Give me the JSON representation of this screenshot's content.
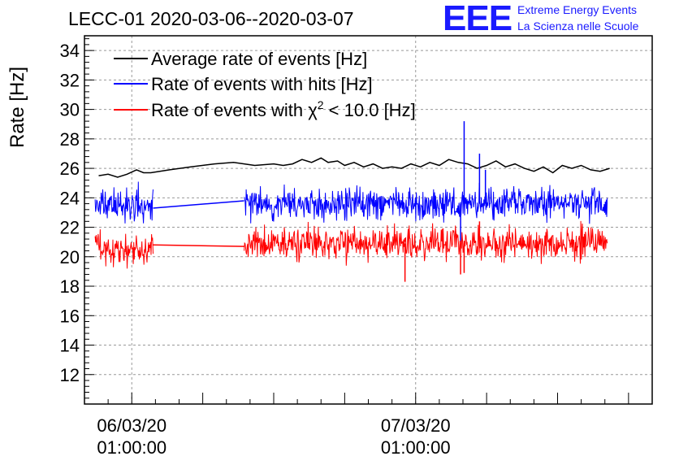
{
  "header": {
    "title": "LECC-01 2020-03-06--2020-03-07",
    "logo_text": "EEE",
    "logo_line1": "Extreme Energy Events",
    "logo_line2": "La Scienza nelle Scuole"
  },
  "chart_data": {
    "type": "line",
    "ylabel": "Rate [Hz]",
    "ylim": [
      10,
      35
    ],
    "yticks": [
      12,
      14,
      16,
      18,
      20,
      22,
      24,
      26,
      28,
      30,
      32,
      34
    ],
    "xlim_hours": [
      -2.0,
      22.0
    ],
    "xticks": [
      {
        "t": 0,
        "line1": "06/03/20",
        "line2": "01:00:00"
      },
      {
        "t": 12,
        "line1": "07/03/20",
        "line2": "01:00:00"
      }
    ],
    "grid": true,
    "legend": "top-left",
    "legend_entries": [
      {
        "series": "avg",
        "text_before": "Average rate of events [Hz]",
        "sup": "",
        "text_after": ""
      },
      {
        "series": "hits",
        "text_before": "Rate of events with hits [Hz]",
        "sup": "",
        "text_after": ""
      },
      {
        "series": "chi2",
        "text_before": "Rate of events with χ",
        "sup": "2",
        "text_after": " < 10.0 [Hz]"
      }
    ],
    "series": [
      {
        "key": "avg",
        "name": "Average rate of events [Hz]",
        "color": "#000000",
        "x": [
          -1.4,
          -1.0,
          -0.6,
          -0.2,
          0.2,
          0.5,
          0.8,
          1.6,
          2.5,
          3.5,
          4.3,
          5.2,
          6.0,
          6.4,
          6.8,
          7.2,
          7.6,
          8.0,
          8.3,
          8.7,
          9.0,
          9.4,
          9.8,
          10.2,
          10.6,
          11.0,
          11.4,
          11.8,
          12.2,
          12.6,
          13.0,
          13.4,
          13.8,
          14.2,
          14.6,
          15.0,
          15.4,
          15.8,
          16.2,
          16.6,
          17.0,
          17.4,
          17.8,
          18.2,
          18.6,
          19.0,
          19.4,
          19.8,
          20.2
        ],
        "y": [
          25.5,
          25.6,
          25.4,
          25.6,
          25.9,
          25.7,
          25.7,
          25.9,
          26.1,
          26.3,
          26.4,
          26.2,
          26.3,
          26.2,
          26.3,
          26.6,
          26.4,
          26.7,
          26.4,
          26.5,
          26.2,
          26.4,
          26.1,
          26.3,
          26.0,
          26.1,
          26.0,
          26.3,
          26.1,
          26.4,
          26.2,
          26.6,
          26.4,
          26.3,
          26.0,
          26.2,
          26.5,
          26.1,
          26.3,
          26.0,
          25.8,
          26.1,
          25.7,
          26.2,
          26.0,
          26.2,
          25.9,
          25.8,
          26.0
        ]
      },
      {
        "key": "hits",
        "name": "Rate of events with hits [Hz]",
        "color": "#0000ff",
        "segments": [
          {
            "t0": -1.55,
            "t1": 0.9,
            "mean": 23.5,
            "spread": 1.0,
            "seed": 11
          },
          {
            "t0": 0.9,
            "t1": 4.75,
            "linear_from": 23.3,
            "linear_to": 23.8
          },
          {
            "t0": 4.75,
            "t1": 20.1,
            "mean": 23.6,
            "spread": 1.0,
            "seed": 23
          }
        ],
        "spikes": [
          {
            "t": 14.05,
            "y": 29.2
          },
          {
            "t": 14.7,
            "y": 27.0
          },
          {
            "t": 14.95,
            "y": 25.9
          },
          {
            "t": 13.9,
            "y": 21.0
          }
        ]
      },
      {
        "key": "chi2",
        "name": "Rate of events with χ2 < 10.0 [Hz]",
        "color": "#ff0000",
        "segments": [
          {
            "t0": -1.55,
            "t1": 0.9,
            "mean": 20.5,
            "spread": 1.0,
            "seed": 37
          },
          {
            "t0": 0.9,
            "t1": 4.75,
            "linear_from": 20.8,
            "linear_to": 20.7
          },
          {
            "t0": 4.75,
            "t1": 20.1,
            "mean": 20.9,
            "spread": 1.0,
            "seed": 53
          }
        ],
        "spikes": [
          {
            "t": 11.55,
            "y": 18.3
          },
          {
            "t": 13.9,
            "y": 18.8
          },
          {
            "t": 14.05,
            "y": 18.9
          },
          {
            "t": 14.7,
            "y": 22.4
          }
        ]
      }
    ]
  }
}
